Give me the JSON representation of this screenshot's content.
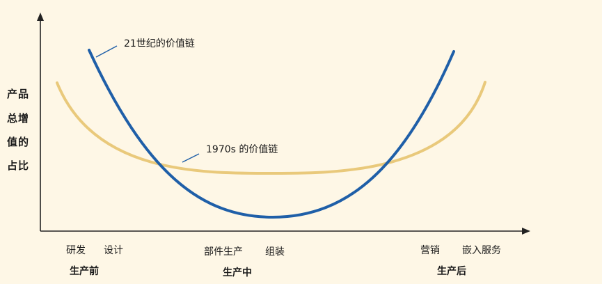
{
  "y_axis_label_lines": [
    "产品",
    "总增",
    "值的",
    "占比"
  ],
  "curves": [
    {
      "label": "21世纪的价值链",
      "color": "#1F5FA8"
    },
    {
      "label": "1970s 的价值链",
      "color": "#E9C97B"
    }
  ],
  "x_activities": [
    "研发",
    "设计",
    "部件生产",
    "组装",
    "营销",
    "嵌入服务"
  ],
  "stages": [
    "生产前",
    "生产中",
    "生产后"
  ]
}
